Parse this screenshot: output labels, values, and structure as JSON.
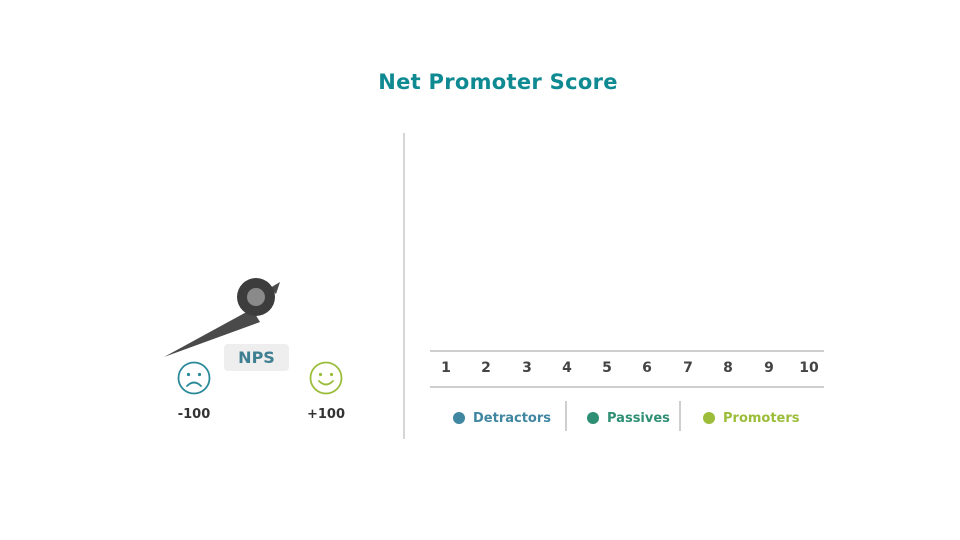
{
  "title": "Net Promoter Score",
  "gauge": {
    "badge": "NPS",
    "min_label": "-100",
    "max_label": "+100",
    "min_icon": "sad-face-icon",
    "max_icon": "happy-face-icon",
    "colors": {
      "needle": "#4a4a4a",
      "hub": "#3d3d3d",
      "sad": "#2a8a99",
      "happy": "#9bbd3a"
    }
  },
  "scale": {
    "numbers": [
      "1",
      "2",
      "3",
      "4",
      "5",
      "6",
      "7",
      "8",
      "9",
      "10"
    ]
  },
  "legend": [
    {
      "label": "Detractors",
      "color": "#3f86a0"
    },
    {
      "label": "Passives",
      "color": "#2f8f74"
    },
    {
      "label": "Promoters",
      "color": "#9bbd3a"
    }
  ]
}
